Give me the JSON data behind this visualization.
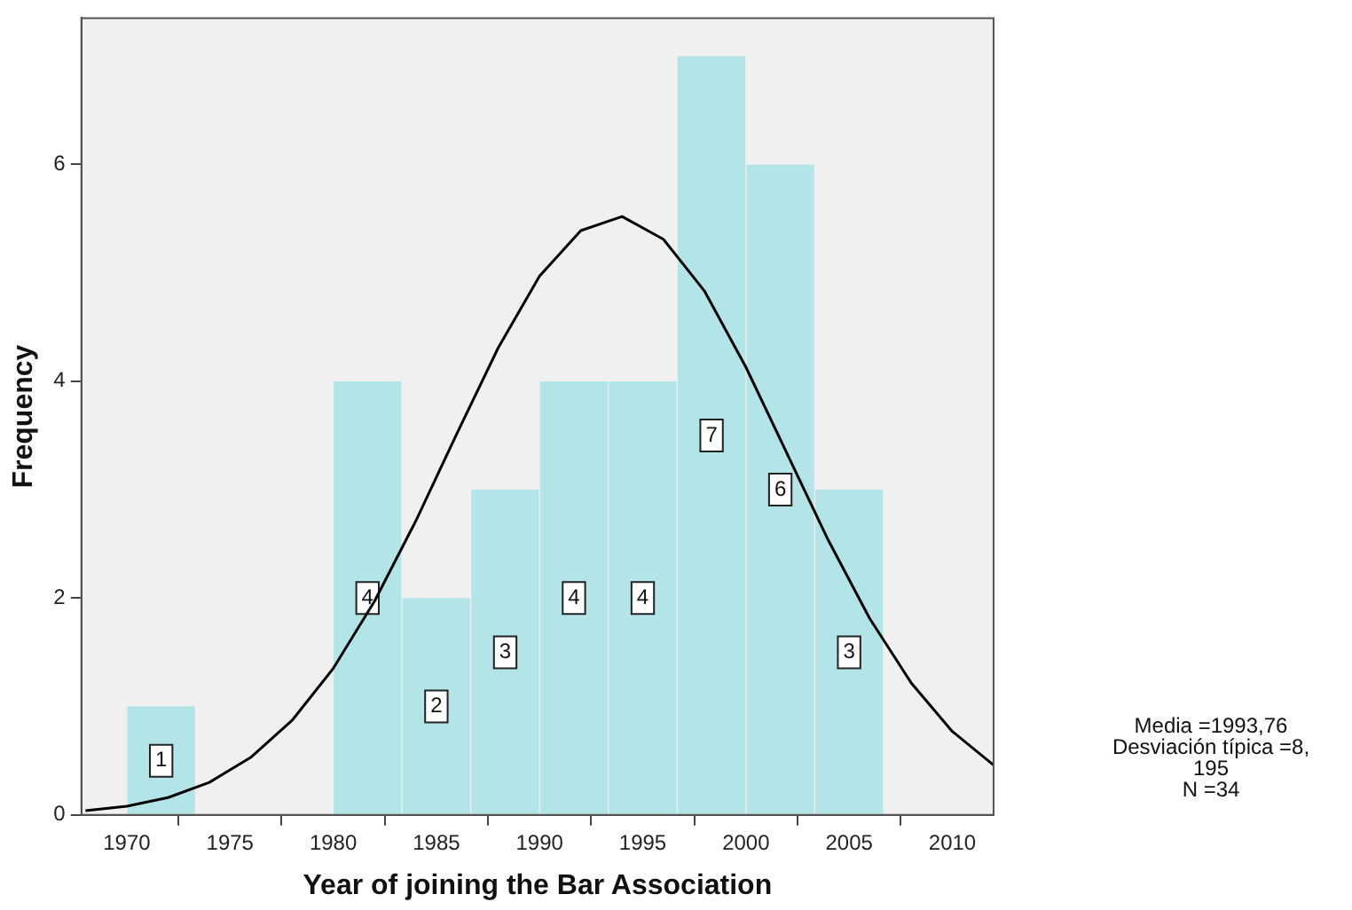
{
  "chart_data": {
    "type": "histogram",
    "xlabel": "Year of joining the Bar Association",
    "ylabel": "Frequency",
    "bins": [
      1970,
      1973.33,
      1976.67,
      1980,
      1983.33,
      1986.67,
      1990,
      1993.33,
      1996.67,
      2000,
      2003.33,
      2006.67
    ],
    "values": [
      1,
      0,
      0,
      4,
      2,
      3,
      4,
      4,
      7,
      6,
      3
    ],
    "value_labels": [
      "1",
      null,
      null,
      "4",
      "2",
      "3",
      "4",
      "4",
      "7",
      "6",
      "3"
    ],
    "color": "#b3e5e8",
    "series": [
      {
        "type": "line",
        "color": "#000000",
        "x": [
          1968,
          1970,
          1972,
          1974,
          1976,
          1978,
          1980,
          1982,
          1984,
          1986,
          1988,
          1990,
          1992,
          1994,
          1996,
          1998,
          2000,
          2002,
          2004,
          2006,
          2008,
          2010,
          2012
        ],
        "values": [
          0.04,
          0.08,
          0.16,
          0.3,
          0.53,
          0.87,
          1.35,
          1.97,
          2.71,
          3.52,
          4.31,
          4.97,
          5.39,
          5.52,
          5.31,
          4.83,
          4.13,
          3.33,
          2.53,
          1.81,
          1.22,
          0.77,
          0.46
        ]
      }
    ],
    "xlim": [
      1967.8,
      2012
    ],
    "xticks": [
      1970,
      1975,
      1980,
      1985,
      1990,
      1995,
      2000,
      2005,
      2010
    ],
    "ylim": [
      0,
      7.35
    ],
    "yticks": [
      0,
      2,
      4,
      6
    ],
    "grid": false,
    "legend": false,
    "marker": "none",
    "annotations": [
      "Media =1993,76\nDesviación típica =8,\n195\nN =34"
    ]
  }
}
